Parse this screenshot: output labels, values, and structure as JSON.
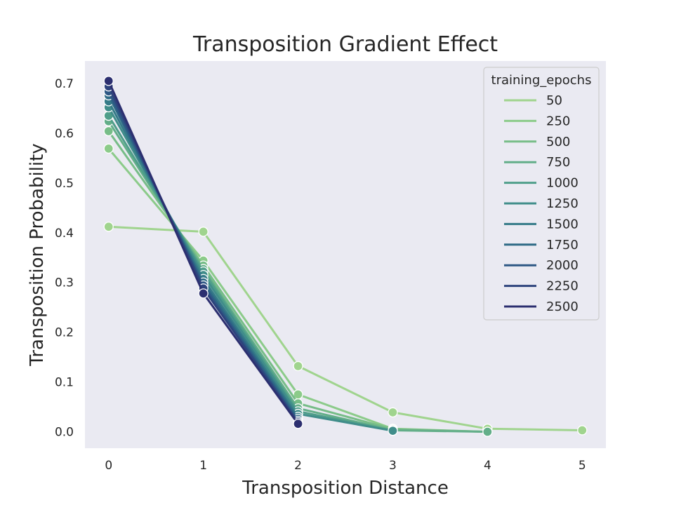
{
  "chart_data": {
    "type": "line",
    "title": "Transposition Gradient Effect",
    "xlabel": "Transposition Distance",
    "ylabel": "Transposition Probability",
    "xlim": [
      -0.25,
      5.25
    ],
    "ylim": [
      -0.033,
      0.745
    ],
    "x_ticks": [
      "0",
      "1",
      "2",
      "3",
      "4",
      "5"
    ],
    "y_ticks": [
      "0.0",
      "0.1",
      "0.2",
      "0.3",
      "0.4",
      "0.5",
      "0.6",
      "0.7"
    ],
    "grid": false,
    "legend_title": "training_epochs",
    "legend_position": "top-right",
    "background": "#eaeaf2",
    "series": [
      {
        "name": "50",
        "color": "#a0d48e",
        "x": [
          0,
          1,
          2,
          3,
          4,
          5
        ],
        "y": [
          0.412,
          0.402,
          0.132,
          0.039,
          0.006,
          0.003
        ]
      },
      {
        "name": "250",
        "color": "#8ccb8a",
        "x": [
          0,
          1,
          2,
          3,
          4
        ],
        "y": [
          0.569,
          0.344,
          0.075,
          0.006,
          0.0
        ]
      },
      {
        "name": "500",
        "color": "#77bd88",
        "x": [
          0,
          1,
          2,
          3,
          4
        ],
        "y": [
          0.604,
          0.334,
          0.057,
          0.005,
          0.0
        ]
      },
      {
        "name": "750",
        "color": "#63ae89",
        "x": [
          0,
          1,
          2,
          3,
          4
        ],
        "y": [
          0.624,
          0.327,
          0.047,
          0.003,
          0.0
        ]
      },
      {
        "name": "1000",
        "color": "#4f9e8a",
        "x": [
          0,
          1,
          2,
          3
        ],
        "y": [
          0.635,
          0.322,
          0.041,
          0.002
        ]
      },
      {
        "name": "1250",
        "color": "#408d8a",
        "x": [
          0,
          1,
          2,
          3
        ],
        "y": [
          0.652,
          0.315,
          0.036,
          0.002
        ]
      },
      {
        "name": "1500",
        "color": "#357b88",
        "x": [
          0,
          1,
          2
        ],
        "y": [
          0.664,
          0.307,
          0.03
        ]
      },
      {
        "name": "1750",
        "color": "#2e6a86",
        "x": [
          0,
          1,
          2
        ],
        "y": [
          0.676,
          0.3,
          0.026
        ]
      },
      {
        "name": "2000",
        "color": "#2d5784",
        "x": [
          0,
          1,
          2
        ],
        "y": [
          0.684,
          0.294,
          0.022
        ]
      },
      {
        "name": "2250",
        "color": "#2d437c",
        "x": [
          0,
          1,
          2
        ],
        "y": [
          0.694,
          0.288,
          0.019
        ]
      },
      {
        "name": "2500",
        "color": "#2c2f70",
        "x": [
          0,
          1,
          2
        ],
        "y": [
          0.705,
          0.278,
          0.016
        ]
      }
    ]
  }
}
